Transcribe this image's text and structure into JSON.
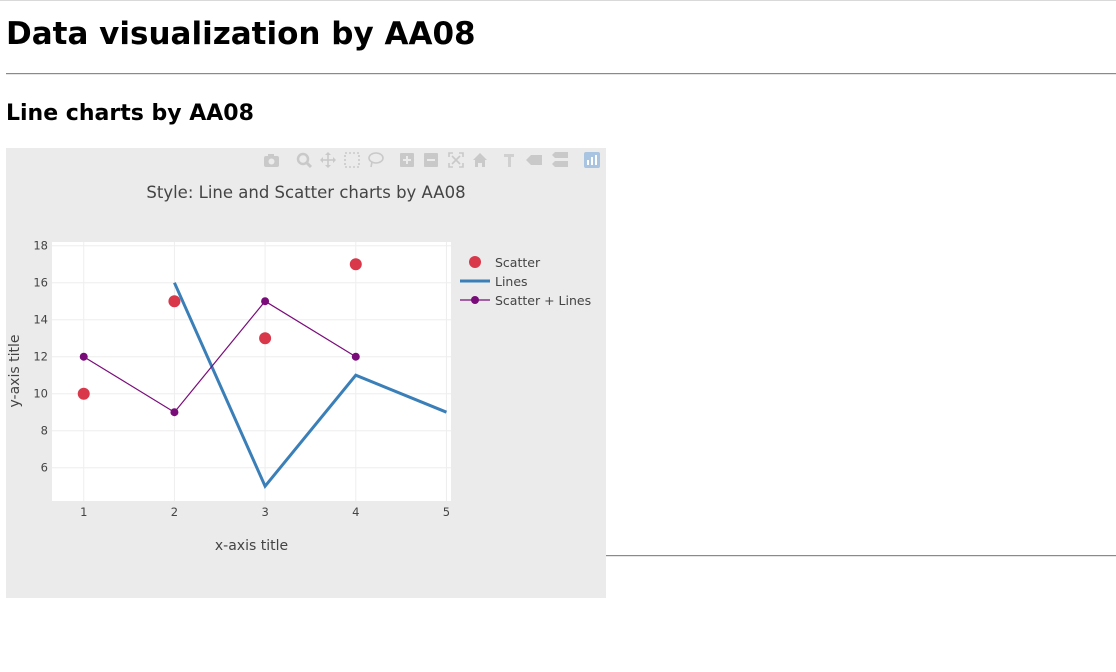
{
  "page": {
    "title": "Data visualization by AA08",
    "section_heading": "Line charts by AA08"
  },
  "modebar": {
    "buttons": [
      "camera-icon",
      "zoom-icon",
      "pan-icon",
      "box-select-icon",
      "lasso-select-icon",
      "zoom-in-icon",
      "zoom-out-icon",
      "autoscale-icon",
      "reset-axes-icon",
      "spike-lines-icon",
      "hover-closest-icon",
      "hover-compare-icon",
      "plotly-logo-icon"
    ]
  },
  "colors": {
    "paper": "#ebebeb",
    "plot": "#ffffff",
    "grid": "#eeeeee",
    "text": "#444444",
    "scatter": "#d9384b",
    "lines": "#3a7fb8",
    "scatter_lines": "#7a0c7a"
  },
  "chart_data": {
    "type": "line",
    "title": "Style: Line and Scatter charts by AA08",
    "xlabel": "x-axis title",
    "ylabel": "y-axis title",
    "xlim": [
      0.65,
      5.05
    ],
    "ylim": [
      4.2,
      18.2
    ],
    "x_ticks": [
      1,
      2,
      3,
      4,
      5
    ],
    "y_ticks": [
      6,
      8,
      10,
      12,
      14,
      16,
      18
    ],
    "grid": true,
    "legend_position": "top-right",
    "series": [
      {
        "name": "Scatter",
        "mode": "markers",
        "color": "#d9384b",
        "x": [
          1,
          2,
          3,
          4
        ],
        "y": [
          10,
          15,
          13,
          17
        ]
      },
      {
        "name": "Lines",
        "mode": "lines",
        "color": "#3a7fb8",
        "x": [
          2,
          3,
          4,
          5
        ],
        "y": [
          16,
          5,
          11,
          9
        ]
      },
      {
        "name": "Scatter + Lines",
        "mode": "lines+markers",
        "color": "#7a0c7a",
        "x": [
          1,
          2,
          3,
          4
        ],
        "y": [
          12,
          9,
          15,
          12
        ]
      }
    ]
  }
}
